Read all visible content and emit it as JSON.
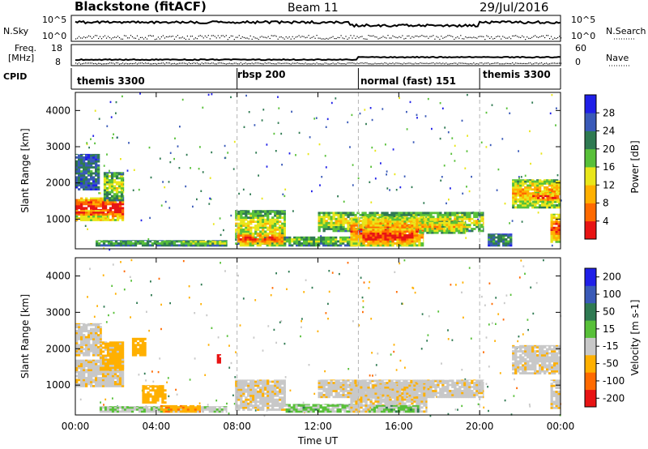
{
  "header": {
    "station": "Blackstone (fitACF)",
    "beam": "Beam 11",
    "date": "29/Jul/2016"
  },
  "top_panels": {
    "nsky_label": "N.Sky",
    "nsky_ticks": [
      "10^5",
      "10^0"
    ],
    "nsearch_label": "N.Search",
    "nsearch_ticks": [
      "10^5",
      "10^0"
    ],
    "freq_label": "Freq.",
    "freq_unit": "[MHz]",
    "freq_ticks": [
      "18",
      "8"
    ],
    "nave_label": "Nave",
    "nave_ticks": [
      "60",
      "0"
    ],
    "cpid_label": "CPID",
    "cpid_segments": [
      {
        "label": "themis 3300",
        "start": 0,
        "end": 8
      },
      {
        "label": "rbsp 200",
        "start": 8,
        "end": 14
      },
      {
        "label": "normal (fast) 151",
        "start": 14,
        "end": 20
      },
      {
        "label": "themis 3300",
        "start": 20,
        "end": 24
      }
    ]
  },
  "x_axis": {
    "label": "Time UT",
    "ticks": [
      "00:00",
      "04:00",
      "08:00",
      "12:00",
      "16:00",
      "20:00",
      "00:00"
    ]
  },
  "chart_data": [
    {
      "type": "heatmap",
      "name": "power",
      "ylabel": "Slant Range [km]",
      "yticks": [
        "1000",
        "2000",
        "3000",
        "4000"
      ],
      "ylim": [
        180,
        4500
      ],
      "xlim": [
        0,
        24
      ],
      "colorbar_label": "Power [dB]",
      "colorbar_ticks": [
        "4",
        "8",
        "12",
        "16",
        "20",
        "24",
        "28"
      ],
      "colorbar_colors": [
        "#2020e8",
        "#3a5ab8",
        "#2f7a52",
        "#58c039",
        "#e9e61a",
        "#ffb000",
        "#ff6a00",
        "#e81414"
      ],
      "regions": [
        {
          "t0": 0.0,
          "t1": 2.4,
          "r0": 950,
          "r1": 1600,
          "level": 1
        },
        {
          "t0": 0.0,
          "t1": 1.6,
          "r0": 1050,
          "r1": 1250,
          "level": 0.95
        },
        {
          "t0": 1.4,
          "t1": 2.4,
          "r0": 1500,
          "r1": 2300,
          "level": 0.55
        },
        {
          "t0": 0.0,
          "t1": 1.2,
          "r0": 1800,
          "r1": 2800,
          "level": 0.3
        },
        {
          "t0": 1.0,
          "t1": 7.5,
          "r0": 250,
          "r1": 420,
          "level": 0.45
        },
        {
          "t0": 5.3,
          "t1": 7.5,
          "r0": 250,
          "r1": 400,
          "level": 0.55
        },
        {
          "t0": 7.9,
          "t1": 10.4,
          "r0": 300,
          "r1": 1250,
          "level": 0.6
        },
        {
          "t0": 8.0,
          "t1": 10.3,
          "r0": 250,
          "r1": 620,
          "level": 0.9
        },
        {
          "t0": 10.3,
          "t1": 14.2,
          "r0": 250,
          "r1": 520,
          "level": 0.5
        },
        {
          "t0": 12.0,
          "t1": 20.2,
          "r0": 650,
          "r1": 1200,
          "level": 0.6
        },
        {
          "t0": 13.6,
          "t1": 17.2,
          "r0": 250,
          "r1": 1050,
          "level": 0.85
        },
        {
          "t0": 14.2,
          "t1": 16.8,
          "r0": 250,
          "r1": 750,
          "level": 0.98
        },
        {
          "t0": 17.0,
          "t1": 19.3,
          "r0": 600,
          "r1": 950,
          "level": 0.7
        },
        {
          "t0": 20.4,
          "t1": 21.6,
          "r0": 250,
          "r1": 600,
          "level": 0.35
        },
        {
          "t0": 21.6,
          "t1": 24.0,
          "r0": 1300,
          "r1": 2100,
          "level": 0.75
        },
        {
          "t0": 22.6,
          "t1": 24.0,
          "r0": 1450,
          "r1": 1750,
          "level": 0.92
        },
        {
          "t0": 23.5,
          "t1": 24.0,
          "r0": 350,
          "r1": 1150,
          "level": 0.9
        }
      ]
    },
    {
      "type": "heatmap",
      "name": "velocity",
      "ylabel": "Slant Range [km]",
      "yticks": [
        "1000",
        "2000",
        "3000",
        "4000"
      ],
      "ylim": [
        180,
        4500
      ],
      "xlim": [
        0,
        24
      ],
      "colorbar_label": "Velocity [m s-1]",
      "colorbar_ticks": [
        "200",
        "100",
        "50",
        "15",
        "-15",
        "-50",
        "-100",
        "-200"
      ],
      "colorbar_colors": [
        "#2020e8",
        "#3a5ab8",
        "#2f7a52",
        "#58c039",
        "#c8c8c8",
        "#ffb000",
        "#ff6a00",
        "#e81414"
      ],
      "regions": [
        {
          "t0": 0.0,
          "t1": 2.4,
          "r0": 950,
          "r1": 1700,
          "v": -5
        },
        {
          "t0": 0.0,
          "t1": 1.3,
          "r0": 1800,
          "r1": 2700,
          "v": -5
        },
        {
          "t0": 1.2,
          "t1": 2.4,
          "r0": 1400,
          "r1": 2200,
          "v": -25
        },
        {
          "t0": 3.3,
          "t1": 4.5,
          "r0": 500,
          "r1": 1000,
          "v": -30
        },
        {
          "t0": 2.8,
          "t1": 3.5,
          "r0": 1800,
          "r1": 2300,
          "v": -30
        },
        {
          "t0": 1.2,
          "t1": 7.5,
          "r0": 250,
          "r1": 420,
          "v": 10
        },
        {
          "t0": 4.2,
          "t1": 6.2,
          "r0": 250,
          "r1": 450,
          "v": -40
        },
        {
          "t0": 7.0,
          "t1": 7.2,
          "r0": 1600,
          "r1": 1850,
          "v": -250
        },
        {
          "t0": 7.9,
          "t1": 10.4,
          "r0": 300,
          "r1": 1150,
          "v": -5
        },
        {
          "t0": 10.4,
          "t1": 14.0,
          "r0": 250,
          "r1": 480,
          "v": 20
        },
        {
          "t0": 12.0,
          "t1": 20.2,
          "r0": 650,
          "r1": 1150,
          "v": -5
        },
        {
          "t0": 13.6,
          "t1": 17.4,
          "r0": 250,
          "r1": 1050,
          "v": -5
        },
        {
          "t0": 14.5,
          "t1": 17.0,
          "r0": 250,
          "r1": 450,
          "v": 20
        },
        {
          "t0": 21.6,
          "t1": 24.0,
          "r0": 1300,
          "r1": 2100,
          "v": -5
        },
        {
          "t0": 23.5,
          "t1": 24.0,
          "r0": 350,
          "r1": 1150,
          "v": -5
        }
      ]
    }
  ]
}
